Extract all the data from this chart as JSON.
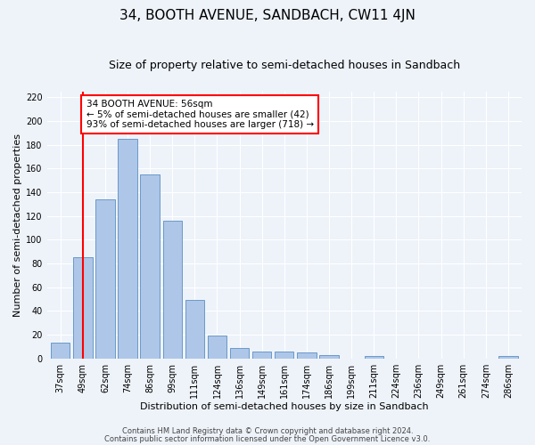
{
  "title": "34, BOOTH AVENUE, SANDBACH, CW11 4JN",
  "subtitle": "Size of property relative to semi-detached houses in Sandbach",
  "xlabel": "Distribution of semi-detached houses by size in Sandbach",
  "ylabel": "Number of semi-detached properties",
  "categories": [
    "37sqm",
    "49sqm",
    "62sqm",
    "74sqm",
    "86sqm",
    "99sqm",
    "111sqm",
    "124sqm",
    "136sqm",
    "149sqm",
    "161sqm",
    "174sqm",
    "186sqm",
    "199sqm",
    "211sqm",
    "224sqm",
    "236sqm",
    "249sqm",
    "261sqm",
    "274sqm",
    "286sqm"
  ],
  "values": [
    13,
    85,
    134,
    185,
    155,
    116,
    49,
    19,
    9,
    6,
    6,
    5,
    3,
    0,
    2,
    0,
    0,
    0,
    0,
    0,
    2
  ],
  "bar_color": "#aec6e8",
  "bar_edge_color": "#5a8fc2",
  "vline_x_index": 1,
  "vline_color": "red",
  "annotation_text": "34 BOOTH AVENUE: 56sqm\n← 5% of semi-detached houses are smaller (42)\n93% of semi-detached houses are larger (718) →",
  "annotation_box_color": "white",
  "annotation_box_edge_color": "red",
  "ylim": [
    0,
    225
  ],
  "yticks": [
    0,
    20,
    40,
    60,
    80,
    100,
    120,
    140,
    160,
    180,
    200,
    220
  ],
  "footer1": "Contains HM Land Registry data © Crown copyright and database right 2024.",
  "footer2": "Contains public sector information licensed under the Open Government Licence v3.0.",
  "bg_color": "#eef3fa",
  "plot_bg_color": "#eef3fa",
  "grid_color": "#ffffff",
  "title_fontsize": 11,
  "subtitle_fontsize": 9,
  "axis_label_fontsize": 8,
  "tick_fontsize": 7,
  "footer_fontsize": 6,
  "annotation_fontsize": 7.5
}
